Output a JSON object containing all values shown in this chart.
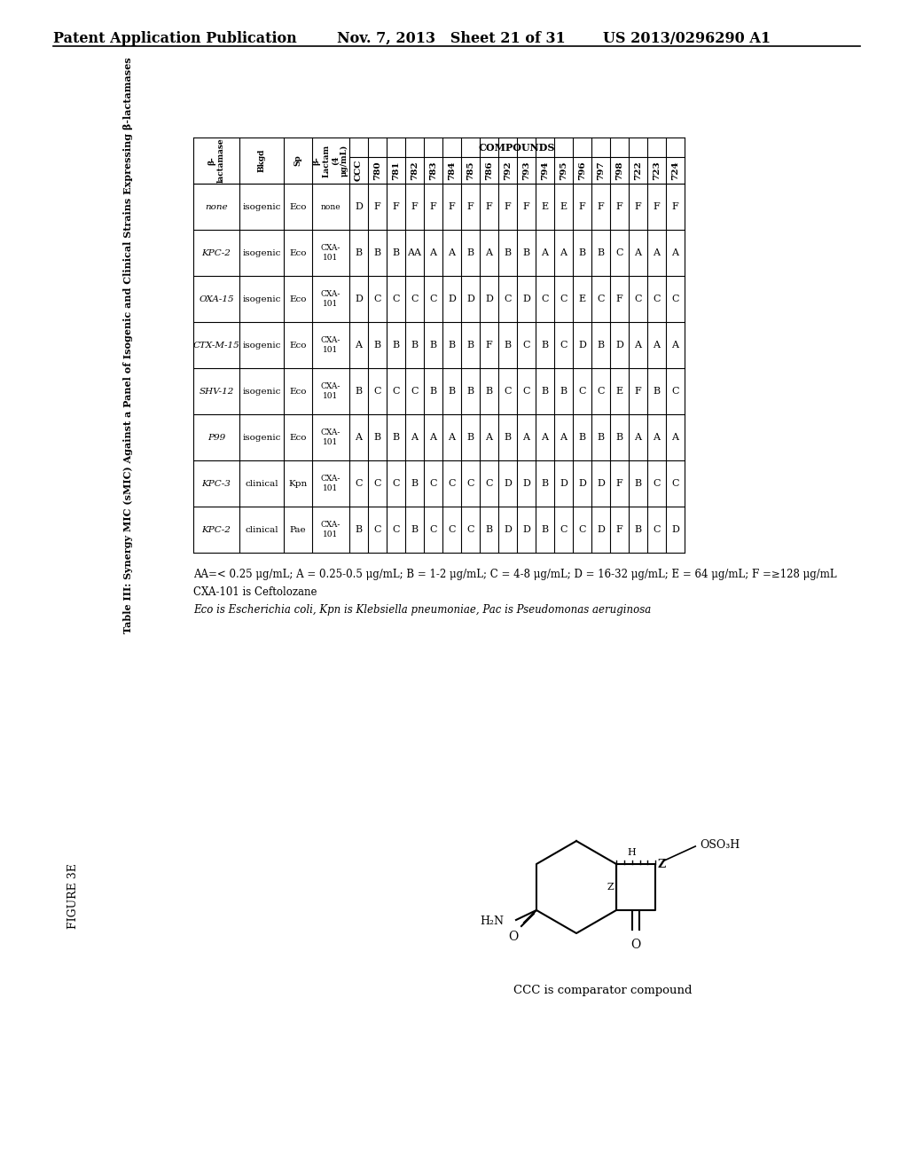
{
  "header_left": "Patent Application Publication",
  "header_mid": "Nov. 7, 2013   Sheet 21 of 31",
  "header_right": "US 2013/0296290 A1",
  "figure_label": "FIGURE 3E",
  "table_title": "Table III: Synergy MIC (sMIC) Against a Panel of Isogenic and Clinical Strains Expressing β-lactamases",
  "col_group_label": "COMPOUNDS",
  "col_headers": [
    "CCC",
    "780",
    "781",
    "782",
    "783",
    "784",
    "785",
    "786",
    "792",
    "793",
    "794",
    "795",
    "796",
    "797",
    "798",
    "722",
    "723",
    "724"
  ],
  "row_headers": [
    [
      "none",
      "isogenic",
      "Eco",
      "none"
    ],
    [
      "KPC-2",
      "isogenic",
      "Eco",
      "CXA-\n101"
    ],
    [
      "OXA-15",
      "isogenic",
      "Eco",
      "CXA-\n101"
    ],
    [
      "CTX-M-15",
      "isogenic",
      "Eco",
      "CXA-\n101"
    ],
    [
      "SHV-12",
      "isogenic",
      "Eco",
      "CXA-\n101"
    ],
    [
      "P99",
      "isogenic",
      "Eco",
      "CXA-\n101"
    ],
    [
      "KPC-3",
      "clinical",
      "Kpn",
      "CXA-\n101"
    ],
    [
      "KPC-2",
      "clinical",
      "Pae",
      "CXA-\n101"
    ]
  ],
  "table_data": [
    [
      "D",
      "F",
      "F",
      "F",
      "F",
      "F",
      "F",
      "F",
      "F",
      "F",
      "E",
      "E",
      "F",
      "F",
      "F",
      "F",
      "F",
      "F"
    ],
    [
      "B",
      "B",
      "B",
      "AA",
      "A",
      "A",
      "B",
      "A",
      "B",
      "B",
      "A",
      "A",
      "B",
      "B",
      "C",
      "A",
      "A",
      "A"
    ],
    [
      "D",
      "C",
      "C",
      "C",
      "C",
      "D",
      "D",
      "D",
      "C",
      "D",
      "C",
      "C",
      "E",
      "C",
      "F",
      "C",
      "C",
      "C"
    ],
    [
      "A",
      "B",
      "B",
      "B",
      "B",
      "B",
      "B",
      "F",
      "B",
      "C",
      "B",
      "C",
      "D",
      "B",
      "D",
      "A",
      "A",
      "A"
    ],
    [
      "B",
      "C",
      "C",
      "C",
      "B",
      "B",
      "B",
      "B",
      "C",
      "C",
      "B",
      "B",
      "C",
      "C",
      "E",
      "F",
      "B",
      "C"
    ],
    [
      "A",
      "B",
      "B",
      "A",
      "A",
      "A",
      "B",
      "A",
      "B",
      "A",
      "A",
      "A",
      "B",
      "B",
      "B",
      "A",
      "A",
      "A"
    ],
    [
      "C",
      "C",
      "C",
      "B",
      "C",
      "C",
      "C",
      "C",
      "D",
      "D",
      "B",
      "D",
      "D",
      "D",
      "F",
      "B",
      "C",
      "C"
    ],
    [
      "B",
      "C",
      "C",
      "B",
      "C",
      "C",
      "C",
      "B",
      "D",
      "D",
      "B",
      "C",
      "C",
      "D",
      "F",
      "B",
      "C",
      "D"
    ]
  ],
  "footnote1": "AA=< 0.25 μg/mL; A = 0.25-0.5 μg/mL; B = 1-2 μg/mL; C = 4-8 μg/mL; D = 16-32 μg/mL; E = 64 μg/mL; F =≥128 μg/mL",
  "footnote2": "CXA-101 is Ceftolozane",
  "footnote3": "Eco is Escherichia coli, Kpn is Klebsiella pneumoniae, Pac is Pseudomonas aeruginosa",
  "footnote4": "CCC is comparator compound",
  "bg_color": "#ffffff",
  "text_color": "#000000"
}
